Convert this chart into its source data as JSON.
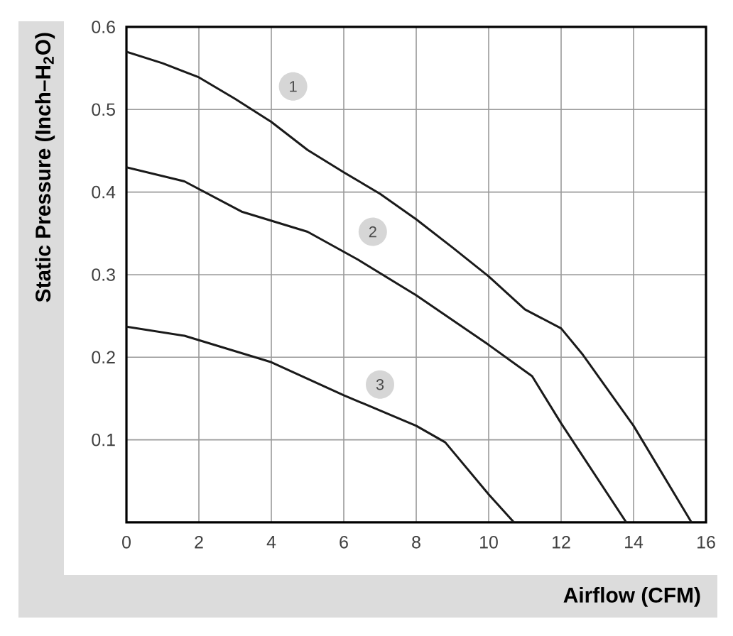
{
  "chart_data": {
    "type": "line",
    "xlabel": "Airflow (CFM)",
    "ylabel": "Static Pressure (Inch–H$_{2}$O)",
    "xlim": [
      0,
      16
    ],
    "xticks": [
      0,
      2,
      4,
      6,
      8,
      10,
      12,
      14,
      16
    ],
    "ylim": [
      0,
      0.6
    ],
    "yticks": [
      0.1,
      0.2,
      0.3,
      0.4,
      0.5,
      0.6
    ],
    "grid": true,
    "marker": "none",
    "line_style": "solid",
    "series": [
      {
        "color": "#1a1a1a",
        "x": [
          0,
          1,
          2,
          3,
          4,
          5,
          6,
          7,
          8,
          9,
          10,
          11,
          12,
          12.6,
          14,
          15.6
        ],
        "values": [
          0.57,
          0.556,
          0.539,
          0.513,
          0.485,
          0.451,
          0.424,
          0.398,
          0.367,
          0.333,
          0.298,
          0.258,
          0.235,
          0.203,
          0.117,
          0
        ]
      },
      {
        "color": "#1a1a1a",
        "x": [
          0,
          1.6,
          3.2,
          5,
          6.4,
          8,
          10,
          11.2,
          12,
          13.8
        ],
        "values": [
          0.43,
          0.413,
          0.376,
          0.352,
          0.318,
          0.275,
          0.215,
          0.177,
          0.12,
          0
        ]
      },
      {
        "color": "#1a1a1a",
        "x": [
          0,
          1.6,
          4,
          6,
          8,
          8.8,
          10,
          10.7
        ],
        "values": [
          0.237,
          0.226,
          0.194,
          0.154,
          0.117,
          0.097,
          0.034,
          0
        ]
      }
    ],
    "annotations": [
      {
        "text": "1",
        "x": 4.6,
        "y": 0.528
      },
      {
        "text": "2",
        "x": 6.8,
        "y": 0.352
      },
      {
        "text": "3",
        "x": 7.0,
        "y": 0.167
      }
    ]
  }
}
